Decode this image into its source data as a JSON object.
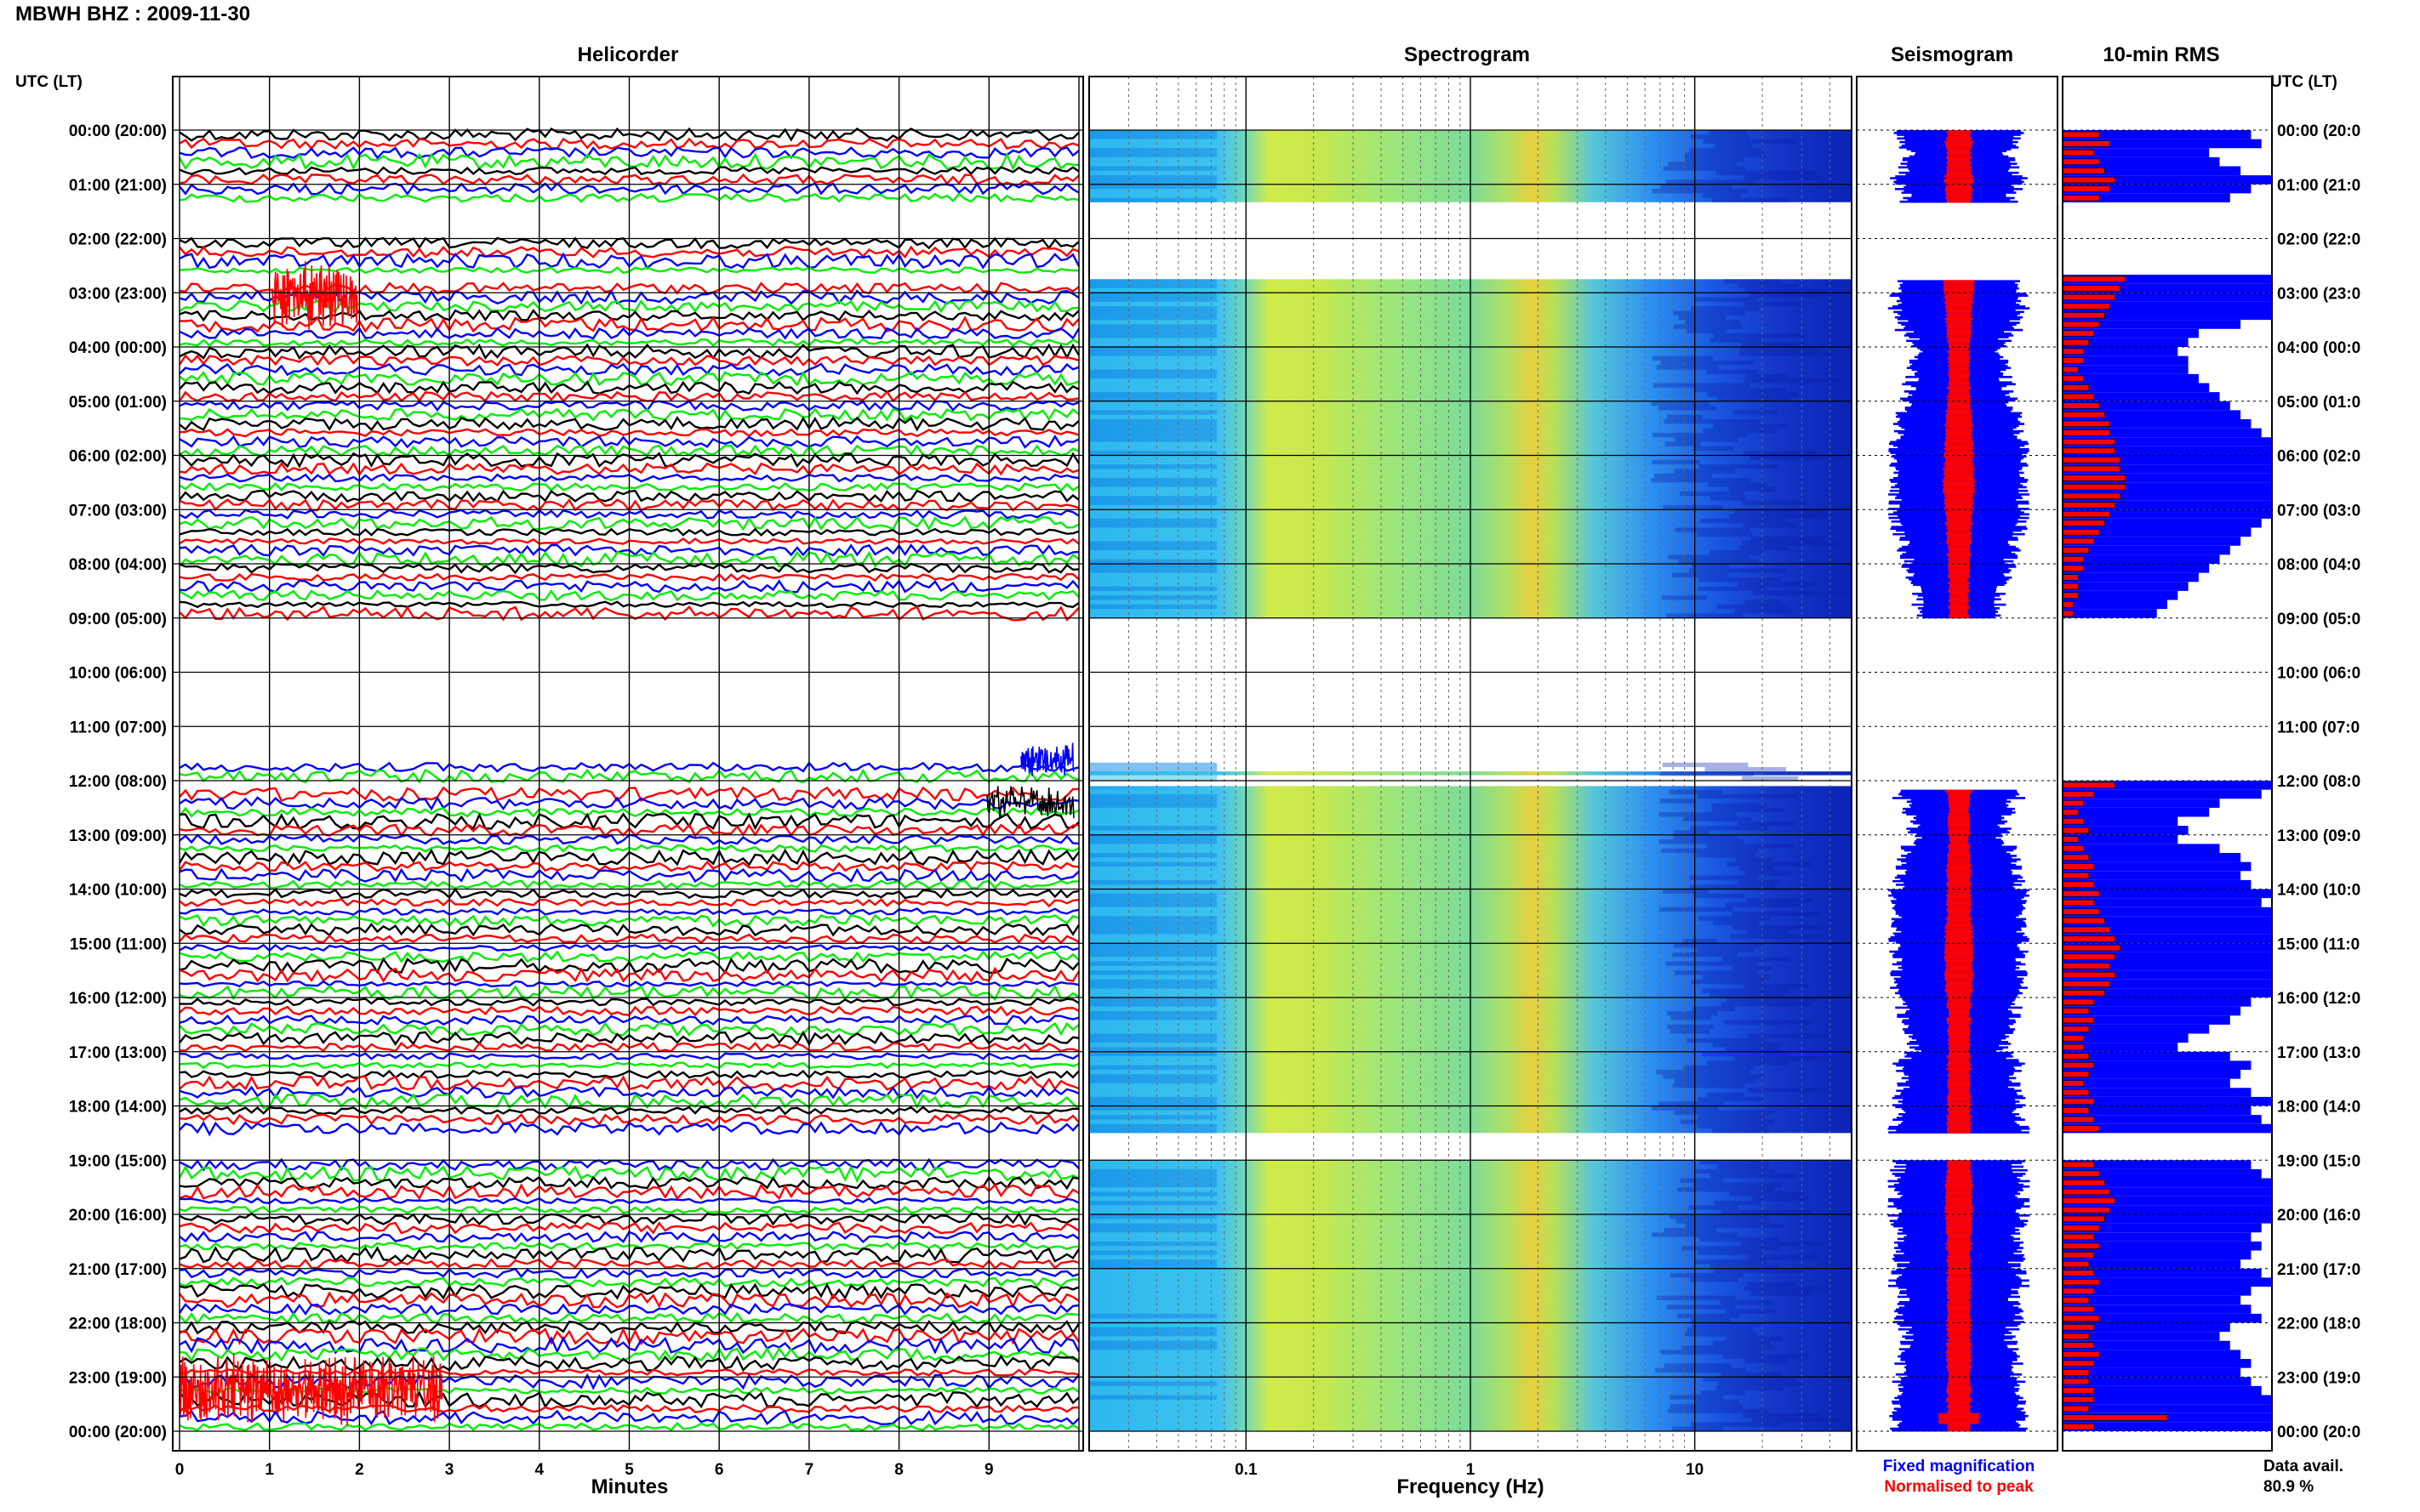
{
  "title": "MBWH BHZ : 2009-11-30",
  "panels": {
    "helicorder": "Helicorder",
    "spectrogram": "Spectrogram",
    "seismogram": "Seismogram",
    "rms": "10-min RMS"
  },
  "left_axis_title": "UTC (LT)",
  "right_axis_title": "UTC (LT)",
  "time_labels": [
    "00:00 (20:00)",
    "01:00 (21:00)",
    "02:00 (22:00)",
    "03:00 (23:00)",
    "04:00 (00:00)",
    "05:00 (01:00)",
    "06:00 (02:00)",
    "07:00 (03:00)",
    "08:00 (04:00)",
    "09:00 (05:00)",
    "10:00 (06:00)",
    "11:00 (07:00)",
    "12:00 (08:00)",
    "13:00 (09:00)",
    "14:00 (10:00)",
    "15:00 (11:00)",
    "16:00 (12:00)",
    "17:00 (13:00)",
    "18:00 (14:00)",
    "19:00 (15:00)",
    "20:00 (16:00)",
    "21:00 (17:00)",
    "22:00 (18:00)",
    "23:00 (19:00)",
    "00:00 (20:00)"
  ],
  "right_time_labels": [
    "00:00 (20:0",
    "01:00 (21:0",
    "02:00 (22:0",
    "03:00 (23:0",
    "04:00 (00:0",
    "05:00 (01:0",
    "06:00 (02:0",
    "07:00 (03:0",
    "08:00 (04:0",
    "09:00 (05:0",
    "10:00 (06:0",
    "11:00 (07:0",
    "12:00 (08:0",
    "13:00 (09:0",
    "14:00 (10:0",
    "15:00 (11:0",
    "16:00 (12:0",
    "17:00 (13:0",
    "18:00 (14:0",
    "19:00 (15:0",
    "20:00 (16:0",
    "21:00 (17:0",
    "22:00 (18:0",
    "23:00 (19:0",
    "00:00 (20:0"
  ],
  "minute_ticks": [
    "0",
    "1",
    "2",
    "3",
    "4",
    "5",
    "6",
    "7",
    "8",
    "9"
  ],
  "minutes_label": "Minutes",
  "freq_ticks": [
    "0.1",
    "1",
    "10"
  ],
  "freq_label": "Frequency (Hz)",
  "legend": {
    "fixed": "Fixed magnification",
    "normalised": "Normalised to peak",
    "fixed_color": "#0000ff",
    "normalised_color": "#ff0000"
  },
  "data_avail_label": "Data avail.",
  "data_avail_value": "80.9 %",
  "trace_colors": [
    "#000000",
    "#ff0000",
    "#0000ff",
    "#00ee00"
  ],
  "chart_data": {
    "type": "heatmap",
    "station": "MBWH",
    "channel": "BHZ",
    "date": "2009-11-30",
    "y_axis": "UTC hour (local time)",
    "helicorder_x_range_minutes": [
      0,
      10
    ],
    "spectrogram_x_range_hz": [
      0.02,
      50
    ],
    "spectrogram_x_scale": "log",
    "data_gaps_utc": [
      [
        "01:20",
        "02:00"
      ],
      [
        "02:40",
        "02:45"
      ],
      [
        "09:00",
        "11:40"
      ],
      [
        "12:00",
        "12:10"
      ],
      [
        "18:30",
        "19:00"
      ]
    ],
    "dominant_spectral_band_hz": [
      1.5,
      2.5
    ],
    "data_availability_percent": 80.9,
    "rms_10min": [
      {
        "time": "00:00",
        "normalised": 0.35,
        "fixed": 0.9
      },
      {
        "time": "00:10",
        "normalised": 0.45,
        "fixed": 0.95
      },
      {
        "time": "00:20",
        "normalised": 0.3,
        "fixed": 0.7
      },
      {
        "time": "00:30",
        "normalised": 0.35,
        "fixed": 0.75
      },
      {
        "time": "00:40",
        "normalised": 0.4,
        "fixed": 0.85
      },
      {
        "time": "00:50",
        "normalised": 0.5,
        "fixed": 1.0
      },
      {
        "time": "01:00",
        "normalised": 0.45,
        "fixed": 0.9
      },
      {
        "time": "01:10",
        "normalised": 0.35,
        "fixed": 0.8
      },
      {
        "time": "02:40",
        "normalised": 0.6,
        "fixed": 1.0
      },
      {
        "time": "02:50",
        "normalised": 0.55,
        "fixed": 1.0
      },
      {
        "time": "03:00",
        "normalised": 0.5,
        "fixed": 1.0
      },
      {
        "time": "03:10",
        "normalised": 0.45,
        "fixed": 1.0
      },
      {
        "time": "03:20",
        "normalised": 0.4,
        "fixed": 1.0
      },
      {
        "time": "03:30",
        "normalised": 0.35,
        "fixed": 0.85
      },
      {
        "time": "03:40",
        "normalised": 0.3,
        "fixed": 0.65
      },
      {
        "time": "03:50",
        "normalised": 0.25,
        "fixed": 0.6
      },
      {
        "time": "04:00",
        "normalised": 0.2,
        "fixed": 0.55
      },
      {
        "time": "04:10",
        "normalised": 0.2,
        "fixed": 0.6
      },
      {
        "time": "04:20",
        "normalised": 0.15,
        "fixed": 0.6
      },
      {
        "time": "04:30",
        "normalised": 0.2,
        "fixed": 0.65
      },
      {
        "time": "04:40",
        "normalised": 0.25,
        "fixed": 0.7
      },
      {
        "time": "04:50",
        "normalised": 0.3,
        "fixed": 0.75
      },
      {
        "time": "05:00",
        "normalised": 0.35,
        "fixed": 0.8
      },
      {
        "time": "05:10",
        "normalised": 0.4,
        "fixed": 0.85
      },
      {
        "time": "05:20",
        "normalised": 0.45,
        "fixed": 0.9
      },
      {
        "time": "05:30",
        "normalised": 0.45,
        "fixed": 0.95
      },
      {
        "time": "05:40",
        "normalised": 0.5,
        "fixed": 1.0
      },
      {
        "time": "05:50",
        "normalised": 0.5,
        "fixed": 1.0
      },
      {
        "time": "06:00",
        "normalised": 0.55,
        "fixed": 1.0
      },
      {
        "time": "06:10",
        "normalised": 0.55,
        "fixed": 1.0
      },
      {
        "time": "06:20",
        "normalised": 0.6,
        "fixed": 1.0
      },
      {
        "time": "06:30",
        "normalised": 0.6,
        "fixed": 1.0
      },
      {
        "time": "06:40",
        "normalised": 0.55,
        "fixed": 1.0
      },
      {
        "time": "06:50",
        "normalised": 0.5,
        "fixed": 1.0
      },
      {
        "time": "07:00",
        "normalised": 0.45,
        "fixed": 1.0
      },
      {
        "time": "07:10",
        "normalised": 0.4,
        "fixed": 0.95
      },
      {
        "time": "07:20",
        "normalised": 0.35,
        "fixed": 0.9
      },
      {
        "time": "07:30",
        "normalised": 0.3,
        "fixed": 0.85
      },
      {
        "time": "07:40",
        "normalised": 0.25,
        "fixed": 0.8
      },
      {
        "time": "07:50",
        "normalised": 0.2,
        "fixed": 0.75
      },
      {
        "time": "08:00",
        "normalised": 0.2,
        "fixed": 0.7
      },
      {
        "time": "08:10",
        "normalised": 0.15,
        "fixed": 0.65
      },
      {
        "time": "08:20",
        "normalised": 0.15,
        "fixed": 0.6
      },
      {
        "time": "08:30",
        "normalised": 0.15,
        "fixed": 0.55
      },
      {
        "time": "08:40",
        "normalised": 0.1,
        "fixed": 0.5
      },
      {
        "time": "08:50",
        "normalised": 0.1,
        "fixed": 0.45
      },
      {
        "time": "12:00",
        "normalised": 0.5,
        "fixed": 1.0
      },
      {
        "time": "12:10",
        "normalised": 0.3,
        "fixed": 0.95
      },
      {
        "time": "12:20",
        "normalised": 0.2,
        "fixed": 0.75
      },
      {
        "time": "12:30",
        "normalised": 0.15,
        "fixed": 0.7
      },
      {
        "time": "12:40",
        "normalised": 0.2,
        "fixed": 0.55
      },
      {
        "time": "12:50",
        "normalised": 0.25,
        "fixed": 0.6
      },
      {
        "time": "13:00",
        "normalised": 0.15,
        "fixed": 0.55
      },
      {
        "time": "13:10",
        "normalised": 0.2,
        "fixed": 0.75
      },
      {
        "time": "13:20",
        "normalised": 0.25,
        "fixed": 0.85
      },
      {
        "time": "13:30",
        "normalised": 0.3,
        "fixed": 0.9
      },
      {
        "time": "13:40",
        "normalised": 0.25,
        "fixed": 0.85
      },
      {
        "time": "13:50",
        "normalised": 0.3,
        "fixed": 0.9
      },
      {
        "time": "14:00",
        "normalised": 0.35,
        "fixed": 1.0
      },
      {
        "time": "14:10",
        "normalised": 0.3,
        "fixed": 0.95
      },
      {
        "time": "14:20",
        "normalised": 0.35,
        "fixed": 1.0
      },
      {
        "time": "14:30",
        "normalised": 0.4,
        "fixed": 1.0
      },
      {
        "time": "14:40",
        "normalised": 0.45,
        "fixed": 1.0
      },
      {
        "time": "14:50",
        "normalised": 0.5,
        "fixed": 1.0
      },
      {
        "time": "15:00",
        "normalised": 0.55,
        "fixed": 1.0
      },
      {
        "time": "15:10",
        "normalised": 0.5,
        "fixed": 1.0
      },
      {
        "time": "15:20",
        "normalised": 0.45,
        "fixed": 1.0
      },
      {
        "time": "15:30",
        "normalised": 0.5,
        "fixed": 1.0
      },
      {
        "time": "15:40",
        "normalised": 0.45,
        "fixed": 1.0
      },
      {
        "time": "15:50",
        "normalised": 0.4,
        "fixed": 1.0
      },
      {
        "time": "16:00",
        "normalised": 0.3,
        "fixed": 0.9
      },
      {
        "time": "16:10",
        "normalised": 0.25,
        "fixed": 0.85
      },
      {
        "time": "16:20",
        "normalised": 0.3,
        "fixed": 0.8
      },
      {
        "time": "16:30",
        "normalised": 0.25,
        "fixed": 0.7
      },
      {
        "time": "16:40",
        "normalised": 0.2,
        "fixed": 0.6
      },
      {
        "time": "16:50",
        "normalised": 0.2,
        "fixed": 0.55
      },
      {
        "time": "17:00",
        "normalised": 0.25,
        "fixed": 0.8
      },
      {
        "time": "17:10",
        "normalised": 0.3,
        "fixed": 0.9
      },
      {
        "time": "17:20",
        "normalised": 0.25,
        "fixed": 0.85
      },
      {
        "time": "17:30",
        "normalised": 0.2,
        "fixed": 0.8
      },
      {
        "time": "17:40",
        "normalised": 0.25,
        "fixed": 0.9
      },
      {
        "time": "17:50",
        "normalised": 0.3,
        "fixed": 1.0
      },
      {
        "time": "18:00",
        "normalised": 0.25,
        "fixed": 0.9
      },
      {
        "time": "18:10",
        "normalised": 0.3,
        "fixed": 0.95
      },
      {
        "time": "18:20",
        "normalised": 0.35,
        "fixed": 1.0
      },
      {
        "time": "19:00",
        "normalised": 0.3,
        "fixed": 0.9
      },
      {
        "time": "19:10",
        "normalised": 0.35,
        "fixed": 0.95
      },
      {
        "time": "19:20",
        "normalised": 0.4,
        "fixed": 1.0
      },
      {
        "time": "19:30",
        "normalised": 0.45,
        "fixed": 1.0
      },
      {
        "time": "19:40",
        "normalised": 0.5,
        "fixed": 1.0
      },
      {
        "time": "19:50",
        "normalised": 0.45,
        "fixed": 1.0
      },
      {
        "time": "20:00",
        "normalised": 0.4,
        "fixed": 1.0
      },
      {
        "time": "20:10",
        "normalised": 0.35,
        "fixed": 0.95
      },
      {
        "time": "20:20",
        "normalised": 0.3,
        "fixed": 0.9
      },
      {
        "time": "20:30",
        "normalised": 0.35,
        "fixed": 0.95
      },
      {
        "time": "20:40",
        "normalised": 0.3,
        "fixed": 0.9
      },
      {
        "time": "20:50",
        "normalised": 0.25,
        "fixed": 0.85
      },
      {
        "time": "21:00",
        "normalised": 0.3,
        "fixed": 0.95
      },
      {
        "time": "21:10",
        "normalised": 0.35,
        "fixed": 1.0
      },
      {
        "time": "21:20",
        "normalised": 0.3,
        "fixed": 0.9
      },
      {
        "time": "21:30",
        "normalised": 0.25,
        "fixed": 0.85
      },
      {
        "time": "21:40",
        "normalised": 0.3,
        "fixed": 0.9
      },
      {
        "time": "21:50",
        "normalised": 0.35,
        "fixed": 0.95
      },
      {
        "time": "22:00",
        "normalised": 0.3,
        "fixed": 0.8
      },
      {
        "time": "22:10",
        "normalised": 0.25,
        "fixed": 0.75
      },
      {
        "time": "22:20",
        "normalised": 0.3,
        "fixed": 0.8
      },
      {
        "time": "22:30",
        "normalised": 0.35,
        "fixed": 0.85
      },
      {
        "time": "22:40",
        "normalised": 0.3,
        "fixed": 0.9
      },
      {
        "time": "22:50",
        "normalised": 0.25,
        "fixed": 0.85
      },
      {
        "time": "23:00",
        "normalised": 0.25,
        "fixed": 0.9
      },
      {
        "time": "23:10",
        "normalised": 0.3,
        "fixed": 0.95
      },
      {
        "time": "23:20",
        "normalised": 0.3,
        "fixed": 1.0
      },
      {
        "time": "23:30",
        "normalised": 0.25,
        "fixed": 1.0
      },
      {
        "time": "23:40",
        "normalised": 1.0,
        "fixed": 1.0
      },
      {
        "time": "23:50",
        "normalised": 0.3,
        "fixed": 1.0
      }
    ]
  }
}
